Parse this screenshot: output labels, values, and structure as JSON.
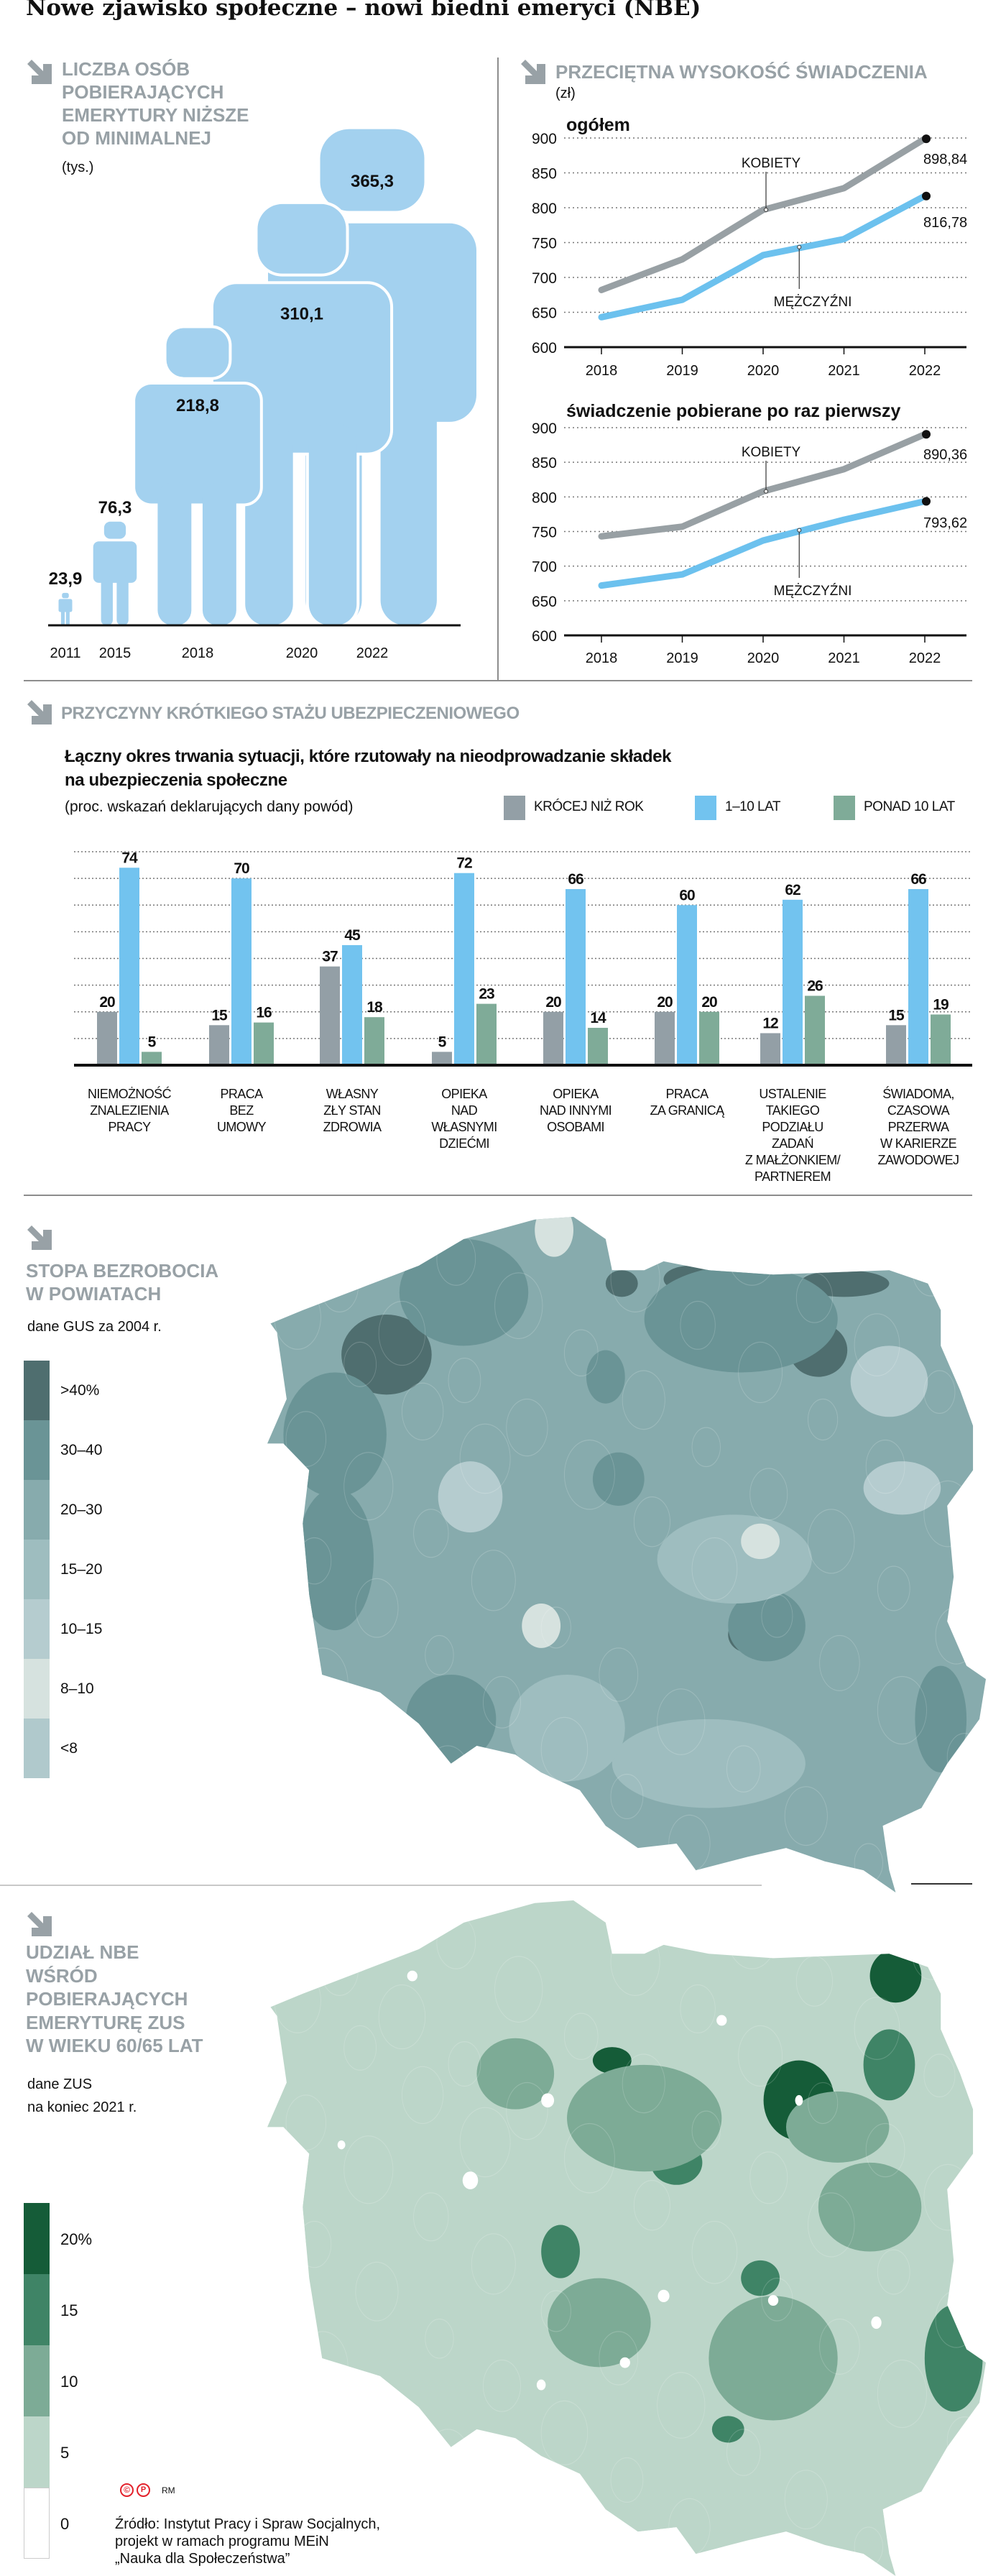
{
  "title": "Nowe zjawisko społeczne – nowi biedni emeryci (NBE)",
  "pensioners": {
    "heading": [
      "LICZBA OSÓB",
      "POBIERAJĄCYCH",
      "EMERYTURY NIŻSZE",
      "OD MINIMALNEJ"
    ],
    "unit": "(tys.)"
  },
  "benefit": {
    "heading": "PRZECIĘTNA WYSOKOŚĆ ŚWIADCZENIA",
    "unit": "(zł)"
  },
  "reasons": {
    "heading": "PRZYCZYNY KRÓTKIEGO STAŻU UBEZPIECZENIOWEGO",
    "subtitle": [
      "Łączny okres trwania sytuacji, które rzutowały na nieodprowadzanie składek",
      "na ubezpieczenia społeczne"
    ],
    "unit": "(proc. wskazań deklarujących dany powód)"
  },
  "maps": [
    {
      "heading": [
        "STOPA BEZROBOCIA",
        "W POWIATACH"
      ],
      "note": [
        "dane GUS za 2004 r."
      ],
      "legend": [
        {
          "label": ">40%",
          "color": "#4f6e6f"
        },
        {
          "label": "30–40",
          "color": "#6a9496"
        },
        {
          "label": "20–30",
          "color": "#87abad"
        },
        {
          "label": "15–20",
          "color": "#9ebdbf"
        },
        {
          "label": "10–15",
          "color": "#b5cccf"
        },
        {
          "label": "8–10",
          "color": "#d6e2df"
        },
        {
          "label": "<8",
          "color": "#b0c9cc"
        }
      ]
    },
    {
      "heading": [
        "UDZIAŁ NBE",
        "WŚRÓD",
        "POBIERAJĄCYCH",
        "EMERYTURĘ ZUS",
        "W WIEKU 60/65 LAT"
      ],
      "note": [
        "dane ZUS",
        "na koniec 2021 r."
      ],
      "legend": [
        {
          "label": "20%",
          "color": "#155c38"
        },
        {
          "label": "15",
          "color": "#3f8466"
        },
        {
          "label": "10",
          "color": "#7dab96"
        },
        {
          "label": "5",
          "color": "#bcd6c9"
        },
        {
          "label": "0",
          "color": "#ffffff"
        }
      ]
    }
  ],
  "footer": {
    "credit": "RM",
    "source": [
      "Źródło: Instytut Pracy i Spraw Socjalnych,",
      "projekt w ramach programu MEiN",
      "„Nauka dla Społeczeństwa”"
    ]
  },
  "chart_data": [
    {
      "type": "bar",
      "id": "pensioners",
      "title": "LICZBA OSÓB POBIERAJĄCYCH EMERYTURY NIŻSZE OD MINIMALNEJ",
      "ylabel": "(tys.)",
      "categories": [
        "2011",
        "2015",
        "2018",
        "2020",
        "2022"
      ],
      "values": [
        23.9,
        76.3,
        218.8,
        310.1,
        365.3
      ],
      "value_labels": [
        "23,9",
        "76,3",
        "218,8",
        "310,1",
        "365,3"
      ],
      "color": "#a3d1ef"
    },
    {
      "type": "line",
      "id": "avg_total",
      "title": "ogółem",
      "x": [
        "2018",
        "2019",
        "2020",
        "2021",
        "2022"
      ],
      "ylim": [
        600,
        900
      ],
      "yticks": [
        "600",
        "650",
        "700",
        "750",
        "800",
        "850",
        "900"
      ],
      "series": [
        {
          "name": "KOBIETY",
          "color": "#98a0a4",
          "values": [
            682,
            726,
            797,
            828,
            898.84
          ],
          "end_label": "898,84"
        },
        {
          "name": "MĘŻCZYŹNI",
          "color": "#6cc1ee",
          "values": [
            643,
            668,
            732,
            755,
            816.78
          ],
          "end_label": "816,78"
        }
      ]
    },
    {
      "type": "line",
      "id": "avg_first",
      "title": "świadczenie pobierane po raz pierwszy",
      "x": [
        "2018",
        "2019",
        "2020",
        "2021",
        "2022"
      ],
      "ylim": [
        600,
        900
      ],
      "yticks": [
        "600",
        "650",
        "700",
        "750",
        "800",
        "850",
        "900"
      ],
      "series": [
        {
          "name": "KOBIETY",
          "color": "#98a0a4",
          "values": [
            743,
            757,
            808,
            840,
            890.36
          ],
          "end_label": "890,36"
        },
        {
          "name": "MĘŻCZYŹNI",
          "color": "#6cc1ee",
          "values": [
            672,
            688,
            737,
            767,
            793.62
          ],
          "end_label": "793,62"
        }
      ]
    },
    {
      "type": "bar",
      "id": "reasons",
      "ylim": [
        0,
        80
      ],
      "categories": [
        [
          "NIEMOŻNOŚĆ",
          "ZNALEZIENIA",
          "PRACY"
        ],
        [
          "PRACA",
          "BEZ",
          "UMOWY"
        ],
        [
          "WŁASNY",
          "ZŁY STAN",
          "ZDROWIA"
        ],
        [
          "OPIEKA",
          "NAD",
          "WŁASNYMI",
          "DZIEĆMI"
        ],
        [
          "OPIEKA",
          "NAD INNYMI",
          "OSOBAMI"
        ],
        [
          "PRACA",
          "ZA GRANICĄ"
        ],
        [
          "USTALENIE",
          "TAKIEGO",
          "PODZIAŁU",
          "ZADAŃ",
          "Z MAŁŻONKIEM/",
          "PARTNEREM"
        ],
        [
          "ŚWIADOMA,",
          "CZASOWA",
          "PRZERWA",
          "W KARIERZE",
          "ZAWODOWEJ"
        ]
      ],
      "series": [
        {
          "name": "KRÓCEJ NIŻ ROK",
          "color": "#939fa6",
          "values": [
            20,
            15,
            37,
            5,
            20,
            20,
            12,
            15
          ]
        },
        {
          "name": "1–10 LAT",
          "color": "#72c3ef",
          "values": [
            74,
            70,
            45,
            72,
            66,
            60,
            62,
            66
          ]
        },
        {
          "name": "PONAD 10 LAT",
          "color": "#7fab98",
          "values": [
            5,
            16,
            18,
            23,
            14,
            20,
            26,
            19
          ]
        }
      ]
    }
  ]
}
